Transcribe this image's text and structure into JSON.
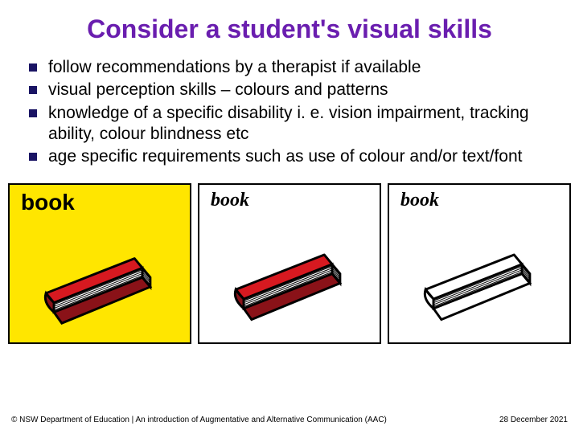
{
  "title": {
    "text": "Consider a student's visual skills",
    "color": "#6a1eaf",
    "fontsize": 32
  },
  "bullets": {
    "marker_color": "#1a1464",
    "text_color": "#000000",
    "fontsize": 21,
    "items": [
      "follow recommendations by a therapist if available",
      "visual perception skills – colours and patterns",
      "knowledge of a specific disability i. e. vision impairment, tracking ability, colour blindness etc",
      "age specific requirements such as use of colour and/or text/font"
    ]
  },
  "cards": [
    {
      "label": "book",
      "label_font": "Arial Black, Arial, sans-serif",
      "label_weight": "900",
      "label_style": "normal",
      "label_size": 28,
      "bg": "#ffe600",
      "book_cover": "#d71920",
      "book_spine": "#8a1218",
      "book_pages": "#ffffff"
    },
    {
      "label": "book",
      "label_font": "Georgia, 'Times New Roman', serif",
      "label_weight": "bold",
      "label_style": "italic",
      "label_size": 24,
      "bg": "#ffffff",
      "book_cover": "#d71920",
      "book_spine": "#8a1218",
      "book_pages": "#ffffff"
    },
    {
      "label": "book",
      "label_font": "Georgia, 'Times New Roman', serif",
      "label_weight": "bold",
      "label_style": "italic",
      "label_size": 24,
      "bg": "#ffffff",
      "book_cover": "#ffffff",
      "book_spine": "#ffffff",
      "book_pages": "#ffffff"
    }
  ],
  "footer": {
    "left": "© NSW Department of Education | An introduction of Augmentative and Alternative Communication (AAC)",
    "right": "28 December 2021"
  }
}
